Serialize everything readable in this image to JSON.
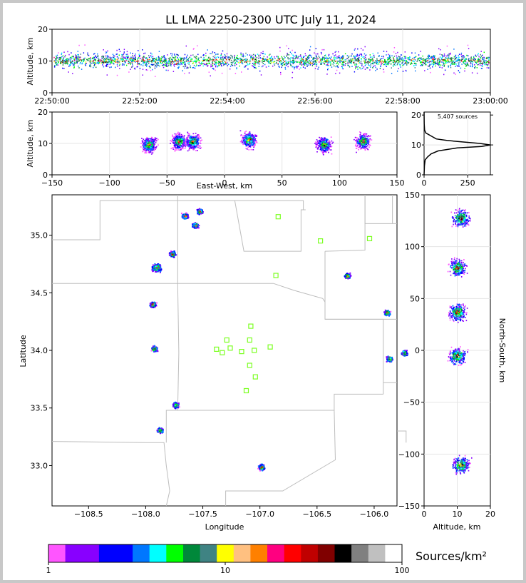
{
  "title": "LL LMA 2250-2300 UTC July 11, 2024",
  "time_height": {
    "ylabel": "Altitude, km",
    "y_ticks": [
      "0",
      "10",
      "20"
    ],
    "x_ticks": [
      "22:50:00",
      "22:52:00",
      "22:54:00",
      "22:56:00",
      "22:58:00",
      "23:00:00"
    ],
    "chart_data": {
      "type": "scatter",
      "x_range_utc": [
        "22:50:00",
        "23:00:00"
      ],
      "ylim": [
        0,
        20
      ],
      "typical_altitude_km": [
        6,
        14
      ],
      "description_of_series": "VHF sources vs time"
    }
  },
  "ew_height": {
    "ylabel": "Altitude, km",
    "xlabel": "East-West, km",
    "x_ticks": [
      "−150",
      "−100",
      "−50",
      "0",
      "50",
      "100",
      "150"
    ],
    "y_ticks": [
      "0",
      "10",
      "20"
    ],
    "chart_data": {
      "type": "scatter",
      "xlim": [
        -150,
        150
      ],
      "ylim": [
        0,
        20
      ],
      "clusters_km": [
        {
          "x": -66,
          "z": 9.5
        },
        {
          "x": -40,
          "z": 10.5
        },
        {
          "x": -28,
          "z": 10.5
        },
        {
          "x": 21,
          "z": 11
        },
        {
          "x": 86,
          "z": 9.5
        },
        {
          "x": 120,
          "z": 10.5
        }
      ]
    }
  },
  "histogram": {
    "label": "5,407 sources",
    "x_ticks": [
      "0",
      "250"
    ],
    "y_ticks": [
      "0",
      "10",
      "20"
    ],
    "chart_data": {
      "type": "line",
      "xlim": [
        0,
        380
      ],
      "ylim": [
        0,
        21
      ],
      "altitude_km": [
        0,
        3,
        5,
        6,
        7,
        8,
        9,
        9.5,
        10,
        10.5,
        11,
        11.5,
        12,
        13,
        14,
        15,
        17,
        21
      ],
      "source_counts": [
        0,
        2,
        6,
        20,
        40,
        80,
        190,
        330,
        380,
        320,
        220,
        130,
        70,
        40,
        10,
        3,
        1,
        0
      ]
    }
  },
  "map": {
    "xlabel": "Longitude",
    "ylabel": "Latitude",
    "x_ticks": [
      "−108.5",
      "−108.0",
      "−107.5",
      "−107.0",
      "−106.5",
      "−106.0"
    ],
    "y_ticks": [
      "33.0",
      "33.5",
      "34.0",
      "34.5",
      "35.0"
    ],
    "chart_data": {
      "type": "scatter",
      "xlim": [
        -108.82,
        -105.8
      ],
      "ylim": [
        32.65,
        35.35
      ],
      "source_clusters": [
        {
          "lon": -107.66,
          "lat": 35.17
        },
        {
          "lon": -107.53,
          "lat": 35.21
        },
        {
          "lon": -107.57,
          "lat": 35.09
        },
        {
          "lon": -107.91,
          "lat": 34.72
        },
        {
          "lon": -107.77,
          "lat": 34.84
        },
        {
          "lon": -107.94,
          "lat": 34.4
        },
        {
          "lon": -107.93,
          "lat": 34.02
        },
        {
          "lon": -106.24,
          "lat": 34.65
        },
        {
          "lon": -105.89,
          "lat": 34.33
        },
        {
          "lon": -105.87,
          "lat": 33.93
        },
        {
          "lon": -105.74,
          "lat": 33.98
        },
        {
          "lon": -106.99,
          "lat": 32.99
        },
        {
          "lon": -107.74,
          "lat": 33.53
        },
        {
          "lon": -107.88,
          "lat": 33.31
        }
      ],
      "stations": [
        {
          "lon": -106.84,
          "lat": 35.16
        },
        {
          "lon": -106.47,
          "lat": 34.95
        },
        {
          "lon": -106.04,
          "lat": 34.97
        },
        {
          "lon": -106.86,
          "lat": 34.65
        },
        {
          "lon": -107.08,
          "lat": 34.21
        },
        {
          "lon": -107.29,
          "lat": 34.09
        },
        {
          "lon": -107.09,
          "lat": 34.09
        },
        {
          "lon": -107.38,
          "lat": 34.01
        },
        {
          "lon": -107.33,
          "lat": 33.98
        },
        {
          "lon": -107.26,
          "lat": 34.02
        },
        {
          "lon": -107.16,
          "lat": 33.99
        },
        {
          "lon": -107.05,
          "lat": 34.0
        },
        {
          "lon": -106.91,
          "lat": 34.03
        },
        {
          "lon": -107.09,
          "lat": 33.87
        },
        {
          "lon": -107.04,
          "lat": 33.77
        },
        {
          "lon": -107.12,
          "lat": 33.65
        }
      ]
    }
  },
  "ns_height": {
    "xlabel": "Altitude, km",
    "ylabel": "North-South, km",
    "x_ticks": [
      "0",
      "10",
      "20"
    ],
    "y_ticks": [
      "150",
      "100",
      "50",
      "0",
      "−50",
      "−100",
      "−150"
    ],
    "chart_data": {
      "type": "scatter",
      "xlim": [
        0,
        20
      ],
      "ylim": [
        -150,
        150
      ],
      "clusters_km": [
        {
          "z": 11,
          "y": 128
        },
        {
          "z": 10,
          "y": 80
        },
        {
          "z": 10,
          "y": 37
        },
        {
          "z": 10,
          "y": -5
        },
        {
          "z": 11,
          "y": -110
        }
      ]
    }
  },
  "colorbar": {
    "label": "Sources/km²",
    "ticks": [
      "1",
      "10",
      "100"
    ],
    "colors": [
      "#ff55ff",
      "#8800ff",
      "#8800ff",
      "#0000ff",
      "#0000ff",
      "#0077ff",
      "#00ffff",
      "#00ff00",
      "#00883a",
      "#3f8383",
      "#ffff00",
      "#ffc080",
      "#ff8000",
      "#ff0080",
      "#ff0000",
      "#c00000",
      "#800000",
      "#000000",
      "#808080",
      "#c0c0c0",
      "#ffffff"
    ]
  }
}
